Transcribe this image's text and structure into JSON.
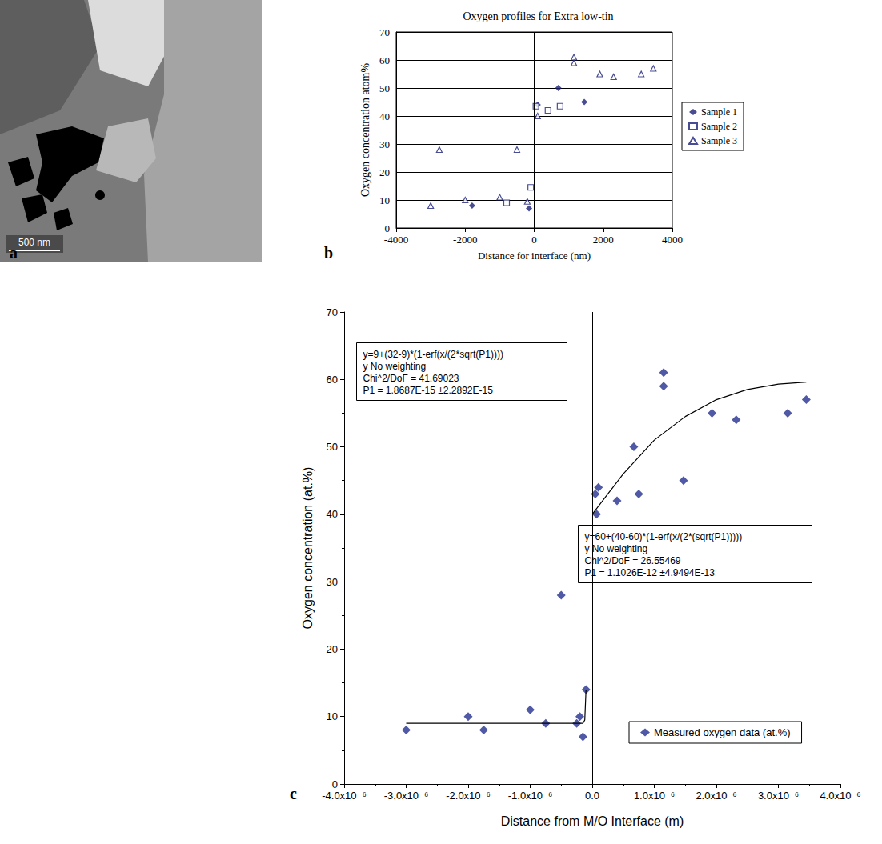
{
  "chart_data": [
    {
      "type": "image",
      "panel": "a",
      "annotations": [
        "500 nm"
      ]
    },
    {
      "type": "scatter",
      "panel": "b",
      "title": "Oxygen profiles for Extra low-tin",
      "x_label": "Distance for interface (nm)",
      "y_label": "Oxygen concentration atom%",
      "xlim": [
        -4000,
        4000
      ],
      "xticks": [
        -4000,
        -2000,
        0,
        2000,
        4000
      ],
      "ylim": [
        0,
        70
      ],
      "yticks": [
        0,
        10,
        20,
        30,
        40,
        50,
        60,
        70
      ],
      "grid": true,
      "legend": "right",
      "reference_x": 0,
      "series": [
        {
          "name": "Sample 1",
          "color": "#1a1f78",
          "marker": "diamond",
          "x": [
            -1800,
            -150,
            100,
            700,
            1450
          ],
          "values": [
            8,
            7,
            44,
            50,
            45
          ]
        },
        {
          "name": "Sample 2",
          "color": "#1a1f78",
          "marker": "open square",
          "x": [
            -800,
            -100,
            50,
            400,
            750
          ],
          "values": [
            9,
            14.5,
            43.5,
            42,
            43.5
          ]
        },
        {
          "name": "Sample 3",
          "color": "#1a1f78",
          "marker": "open triangle",
          "x": [
            -3000,
            -2750,
            -2000,
            -1000,
            -500,
            -200,
            100,
            1150,
            1150,
            1900,
            2300,
            3100,
            3450
          ],
          "values": [
            8,
            28,
            10,
            11,
            28,
            9.5,
            40,
            61,
            59,
            55,
            54,
            55,
            57
          ]
        }
      ]
    },
    {
      "type": "scatter",
      "panel": "c",
      "x_label": "Distance from M/O Interface (m)",
      "y_label": "Oxygen concentration (at.%)",
      "xlim": [
        -4e-06,
        4e-06
      ],
      "xticks": [
        {
          "value": -4e-06,
          "label": "-4.0x10⁻⁶"
        },
        {
          "value": -3e-06,
          "label": "-3.0x10⁻⁶"
        },
        {
          "value": -2e-06,
          "label": "-2.0x10⁻⁶"
        },
        {
          "value": -1e-06,
          "label": "-1.0x10⁻⁶"
        },
        {
          "value": 0,
          "label": "0.0"
        },
        {
          "value": 1e-06,
          "label": "1.0x10⁻⁶"
        },
        {
          "value": 2e-06,
          "label": "2.0x10⁻⁶"
        },
        {
          "value": 3e-06,
          "label": "3.0x10⁻⁶"
        },
        {
          "value": 4e-06,
          "label": "4.0x10⁻⁶"
        }
      ],
      "ylim": [
        0,
        70
      ],
      "yticks": [
        0,
        10,
        20,
        30,
        40,
        50,
        60,
        70
      ],
      "grid": false,
      "legend": "lower right",
      "reference_x": 0,
      "annotations": [
        [
          "y=9+(32-9)*(1-erf(x/(2*sqrt(P1))))",
          "y No weighting",
          "Chi^2/DoF = 41.69023",
          "P1 = 1.8687E-15 ±2.2892E-15"
        ],
        [
          "y=60+(40-60)*(1-erf(x/(2*(sqrt(P1)))))",
          "y No weighting",
          "Chi^2/DoF = 26.55469",
          "P1 = 1.1026E-12 ±4.9494E-13"
        ]
      ],
      "series": [
        {
          "name": "Measured oxygen data (at.%)",
          "color": "#23308f",
          "marker": "diamond",
          "x": [
            -3e-06,
            -2e-06,
            -1.75e-06,
            -1e-06,
            -7.5e-07,
            -5e-07,
            -2.5e-07,
            -2e-07,
            -1.5e-07,
            -1e-07,
            5e-08,
            7e-08,
            1e-07,
            4e-07,
            6.7e-07,
            7.5e-07,
            1.15e-06,
            1.15e-06,
            1.47e-06,
            1.93e-06,
            2.32e-06,
            3.15e-06,
            3.45e-06
          ],
          "values": [
            8,
            10,
            8,
            11,
            9,
            28,
            9,
            10,
            7,
            14,
            43,
            40,
            44,
            42,
            50,
            43,
            61,
            59,
            45,
            55,
            54,
            55,
            57
          ]
        },
        {
          "type": "line",
          "color": "#000000",
          "marker": "none",
          "line_style": "solid",
          "x": [
            -3e-06,
            -1.5e-07,
            -1.2e-07,
            -1e-07
          ],
          "values": [
            9,
            9,
            9.5,
            14
          ]
        },
        {
          "type": "line",
          "color": "#000000",
          "marker": "none",
          "line_style": "solid",
          "x": [
            0,
            5e-07,
            1e-06,
            1.5e-06,
            2e-06,
            2.5e-06,
            3e-06,
            3.45e-06
          ],
          "values": [
            40,
            46,
            51,
            54.5,
            57,
            58.5,
            59.3,
            59.6
          ]
        }
      ]
    }
  ]
}
